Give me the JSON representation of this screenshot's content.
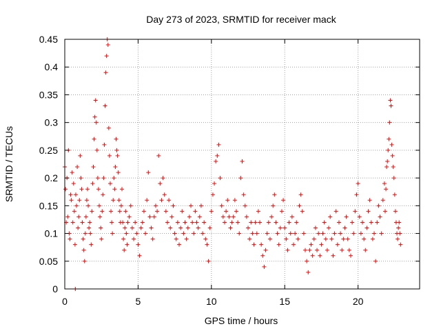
{
  "chart_data": {
    "type": "scatter",
    "title": "Day 273 of 2023, SRMTID for receiver mack",
    "xlabel": "GPS time / hours",
    "ylabel": "SRMTID / TECUs",
    "xlim": [
      0,
      24.2
    ],
    "ylim": [
      0,
      0.45
    ],
    "xticks": [
      0,
      5,
      10,
      15,
      20
    ],
    "xtick_labels": [
      "0",
      "5",
      "10",
      "15",
      "20"
    ],
    "yticks": [
      0,
      0.05,
      0.1,
      0.15,
      0.2,
      0.25,
      0.3,
      0.35,
      0.4,
      0.45
    ],
    "ytick_labels": [
      "0",
      "0.05",
      "0.1",
      "0.15",
      "0.2",
      "0.25",
      "0.3",
      "0.35",
      "0.4",
      "0.45"
    ],
    "grid": true,
    "marker": "+",
    "color": "#ff0000",
    "series": [
      {
        "name": "SRMTID",
        "x": [
          0.0,
          0.05,
          0.1,
          0.15,
          0.2,
          0.25,
          0.3,
          0.35,
          0.4,
          0.45,
          0.5,
          0.55,
          0.6,
          0.65,
          0.7,
          0.75,
          0.8,
          0.85,
          0.9,
          0.95,
          1.0,
          1.05,
          1.1,
          1.15,
          1.2,
          1.25,
          1.3,
          1.35,
          1.4,
          1.45,
          1.5,
          1.55,
          1.6,
          1.65,
          1.7,
          1.75,
          1.8,
          1.85,
          1.9,
          1.95,
          2.0,
          2.05,
          2.1,
          2.15,
          2.2,
          2.25,
          2.3,
          2.35,
          2.4,
          2.45,
          2.5,
          2.55,
          2.6,
          2.65,
          2.7,
          2.75,
          2.8,
          2.85,
          2.9,
          2.95,
          3.0,
          3.05,
          3.1,
          3.15,
          3.2,
          3.25,
          3.3,
          3.35,
          3.4,
          3.45,
          3.5,
          3.55,
          3.6,
          3.65,
          3.7,
          3.75,
          3.8,
          3.85,
          3.9,
          3.95,
          4.0,
          4.05,
          4.1,
          4.15,
          4.2,
          4.25,
          4.3,
          4.4,
          4.5,
          4.6,
          4.7,
          4.8,
          4.9,
          5.0,
          5.1,
          5.2,
          5.3,
          5.4,
          5.5,
          5.6,
          5.7,
          5.8,
          5.9,
          6.0,
          6.1,
          6.2,
          6.3,
          6.4,
          6.5,
          6.6,
          6.7,
          6.8,
          6.9,
          7.0,
          7.1,
          7.2,
          7.3,
          7.4,
          7.5,
          7.6,
          7.7,
          7.8,
          7.9,
          8.0,
          8.1,
          8.2,
          8.3,
          8.4,
          8.5,
          8.6,
          8.7,
          8.8,
          8.9,
          9.0,
          9.1,
          9.2,
          9.3,
          9.4,
          9.5,
          9.6,
          9.7,
          9.8,
          9.9,
          10.0,
          10.1,
          10.2,
          10.3,
          10.4,
          10.5,
          10.6,
          10.7,
          10.8,
          10.9,
          11.0,
          11.1,
          11.2,
          11.3,
          11.4,
          11.5,
          11.6,
          11.7,
          11.8,
          11.9,
          12.0,
          12.1,
          12.2,
          12.3,
          12.4,
          12.5,
          12.6,
          12.7,
          12.8,
          12.9,
          13.0,
          13.1,
          13.2,
          13.3,
          13.4,
          13.5,
          13.6,
          13.7,
          13.8,
          13.9,
          14.0,
          14.1,
          14.2,
          14.3,
          14.4,
          14.5,
          14.6,
          14.7,
          14.8,
          14.9,
          15.0,
          15.1,
          15.2,
          15.3,
          15.4,
          15.5,
          15.6,
          15.7,
          15.8,
          15.9,
          16.0,
          16.1,
          16.2,
          16.3,
          16.4,
          16.5,
          16.6,
          16.7,
          16.8,
          16.9,
          17.0,
          17.1,
          17.2,
          17.3,
          17.4,
          17.5,
          17.6,
          17.7,
          17.8,
          17.9,
          18.0,
          18.1,
          18.2,
          18.3,
          18.4,
          18.5,
          18.6,
          18.7,
          18.8,
          18.9,
          19.0,
          19.1,
          19.2,
          19.3,
          19.4,
          19.5,
          19.6,
          19.7,
          19.8,
          19.9,
          20.0,
          20.1,
          20.2,
          20.3,
          20.4,
          20.5,
          20.6,
          20.7,
          20.8,
          20.9,
          21.0,
          21.1,
          21.2,
          21.3,
          21.4,
          21.5,
          21.6,
          21.7,
          21.8,
          21.85,
          21.9,
          21.95,
          22.0,
          22.05,
          22.1,
          22.15,
          22.2,
          22.25,
          22.3,
          22.35,
          22.4,
          22.45,
          22.5,
          22.55,
          22.6,
          22.65,
          22.7,
          22.75,
          22.8,
          22.85,
          22.9,
          0.72
        ],
        "y": [
          0.22,
          0.18,
          0.12,
          0.2,
          0.13,
          0.25,
          0.1,
          0.09,
          0.17,
          0.16,
          0.21,
          0.12,
          0.19,
          0.14,
          0.08,
          0.17,
          0.15,
          0.22,
          0.11,
          0.13,
          0.16,
          0.24,
          0.2,
          0.18,
          0.12,
          0.09,
          0.07,
          0.05,
          0.1,
          0.13,
          0.16,
          0.18,
          0.15,
          0.11,
          0.12,
          0.1,
          0.08,
          0.14,
          0.19,
          0.22,
          0.27,
          0.31,
          0.34,
          0.3,
          0.25,
          0.2,
          0.18,
          0.15,
          0.13,
          0.11,
          0.09,
          0.14,
          0.17,
          0.2,
          0.26,
          0.33,
          0.39,
          0.42,
          0.45,
          0.44,
          0.29,
          0.24,
          0.19,
          0.14,
          0.12,
          0.1,
          0.16,
          0.2,
          0.18,
          0.22,
          0.27,
          0.25,
          0.24,
          0.21,
          0.16,
          0.14,
          0.12,
          0.15,
          0.18,
          0.12,
          0.09,
          0.07,
          0.11,
          0.14,
          0.1,
          0.08,
          0.12,
          0.13,
          0.15,
          0.11,
          0.09,
          0.12,
          0.1,
          0.08,
          0.06,
          0.11,
          0.12,
          0.14,
          0.1,
          0.16,
          0.21,
          0.13,
          0.11,
          0.09,
          0.13,
          0.15,
          0.14,
          0.24,
          0.19,
          0.16,
          0.2,
          0.17,
          0.14,
          0.12,
          0.16,
          0.11,
          0.13,
          0.15,
          0.1,
          0.09,
          0.12,
          0.08,
          0.11,
          0.14,
          0.1,
          0.12,
          0.09,
          0.11,
          0.13,
          0.15,
          0.12,
          0.1,
          0.14,
          0.12,
          0.11,
          0.13,
          0.15,
          0.1,
          0.12,
          0.09,
          0.08,
          0.05,
          0.11,
          0.14,
          0.17,
          0.19,
          0.23,
          0.24,
          0.26,
          0.2,
          0.15,
          0.13,
          0.12,
          0.14,
          0.16,
          0.13,
          0.11,
          0.12,
          0.13,
          0.16,
          0.14,
          0.12,
          0.1,
          0.2,
          0.23,
          0.17,
          0.15,
          0.13,
          0.11,
          0.09,
          0.12,
          0.1,
          0.08,
          0.12,
          0.1,
          0.14,
          0.12,
          0.08,
          0.06,
          0.04,
          0.07,
          0.1,
          0.12,
          0.09,
          0.13,
          0.15,
          0.17,
          0.12,
          0.1,
          0.08,
          0.11,
          0.14,
          0.16,
          0.11,
          0.09,
          0.07,
          0.12,
          0.1,
          0.13,
          0.08,
          0.1,
          0.12,
          0.09,
          0.15,
          0.17,
          0.14,
          0.1,
          0.07,
          0.05,
          0.03,
          0.07,
          0.08,
          0.06,
          0.09,
          0.11,
          0.07,
          0.1,
          0.06,
          0.08,
          0.1,
          0.12,
          0.09,
          0.07,
          0.11,
          0.13,
          0.09,
          0.06,
          0.1,
          0.14,
          0.08,
          0.12,
          0.1,
          0.07,
          0.09,
          0.11,
          0.13,
          0.09,
          0.07,
          0.06,
          0.12,
          0.1,
          0.14,
          0.17,
          0.19,
          0.13,
          0.1,
          0.12,
          0.09,
          0.07,
          0.11,
          0.14,
          0.16,
          0.12,
          0.09,
          0.1,
          0.05,
          0.12,
          0.15,
          0.13,
          0.1,
          0.16,
          0.19,
          0.14,
          0.18,
          0.22,
          0.23,
          0.25,
          0.27,
          0.3,
          0.34,
          0.33,
          0.26,
          0.24,
          0.22,
          0.2,
          0.17,
          0.14,
          0.12,
          0.1,
          0.09,
          0.11,
          0.12,
          0.1,
          0.08,
          0.0
        ]
      }
    ]
  }
}
